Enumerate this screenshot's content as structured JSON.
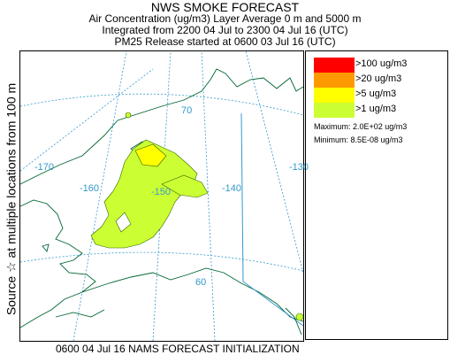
{
  "header": {
    "title": "NWS SMOKE FORECAST",
    "line2": "Air Concentration (ug/m3) Layer Average    0 m and  5000 m",
    "line3": "Integrated from 2200 04 Jul to 2300 04 Jul 16 (UTC)",
    "line4": "PM25 Release started at 0600 03 Jul 16 (UTC)"
  },
  "side_label": "Source ☆  at multiple locations  from  100 m",
  "map": {
    "grid_labels": [
      "-170",
      "-160",
      "-150",
      "-140",
      "-130",
      "70",
      "60"
    ],
    "grid_color": "#3399cc",
    "coast_color": "#006633"
  },
  "legend": {
    "items": [
      {
        "label": ">100 ug/m3",
        "color": "#ff0000"
      },
      {
        "label": ">20 ug/m3",
        "color": "#ff9900"
      },
      {
        "label": ">5 ug/m3",
        "color": "#ffff00"
      },
      {
        "label": ">1 ug/m3",
        "color": "#ccff33"
      }
    ],
    "maximum": "Maximum: 2.0E+02 ug/m3",
    "minimum": "Minimum: 8.5E-08 ug/m3"
  },
  "footer": "0600 04 Jul 16 NAMS FORECAST INITIALIZATION"
}
